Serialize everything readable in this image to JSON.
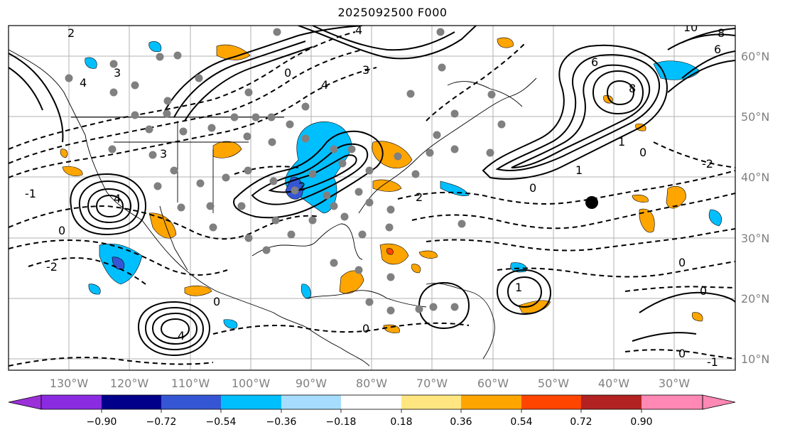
{
  "title": "2025092500 F000",
  "latitude_labels": [
    "60°N",
    "50°N",
    "40°N",
    "30°N",
    "20°N",
    "10°N"
  ],
  "longitude_labels": [
    "130°W",
    "120°W",
    "110°W",
    "100°W",
    "90°W",
    "80°W",
    "70°W",
    "60°W",
    "50°W",
    "40°W",
    "30°W"
  ],
  "colorbar": {
    "tick_labels": [
      "−0.90",
      "−0.72",
      "−0.54",
      "−0.36",
      "−0.18",
      "0.18",
      "0.36",
      "0.54",
      "0.72",
      "0.90"
    ],
    "under_color": "#9b30d9",
    "over_color": "#ff88b4",
    "colors": [
      "#8a2be2",
      "#00008b",
      "#3556d4",
      "#00bfff",
      "#a6ddff",
      "#ffffff",
      "#ffe680",
      "#ffa500",
      "#ff4500",
      "#b22222"
    ]
  },
  "contour_labels": [
    "2",
    "3",
    "4",
    "6",
    "8",
    "10",
    "0",
    "1",
    "-1",
    "-2"
  ],
  "legend_marker": "black-dot"
}
